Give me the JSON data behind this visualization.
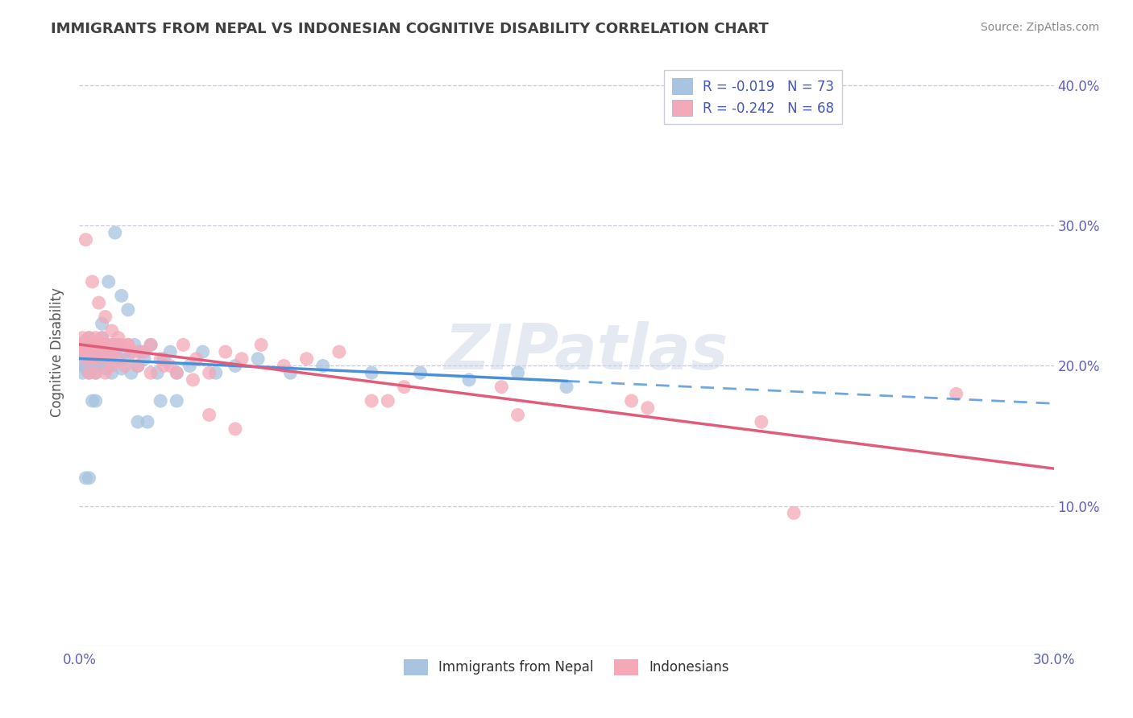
{
  "title": "IMMIGRANTS FROM NEPAL VS INDONESIAN COGNITIVE DISABILITY CORRELATION CHART",
  "source": "Source: ZipAtlas.com",
  "ylabel": "Cognitive Disability",
  "xlim": [
    0.0,
    0.3
  ],
  "ylim": [
    0.0,
    0.42
  ],
  "r1": -0.019,
  "n1": 73,
  "r2": -0.242,
  "n2": 68,
  "color1": "#a8c4e0",
  "color2": "#f4a8b8",
  "line1_color": "#4a90d9",
  "line2_color": "#e05c7a",
  "legend_label1": "Immigrants from Nepal",
  "legend_label2": "Indonesians",
  "background_color": "#ffffff",
  "grid_color": "#c8c8d8",
  "title_color": "#404040",
  "source_color": "#888888",
  "watermark": "ZIPatlas",
  "nepal_x": [
    0.001,
    0.001,
    0.001,
    0.002,
    0.002,
    0.002,
    0.002,
    0.003,
    0.003,
    0.003,
    0.003,
    0.003,
    0.004,
    0.004,
    0.004,
    0.004,
    0.005,
    0.005,
    0.005,
    0.005,
    0.006,
    0.006,
    0.006,
    0.007,
    0.007,
    0.008,
    0.008,
    0.008,
    0.009,
    0.009,
    0.01,
    0.01,
    0.011,
    0.012,
    0.012,
    0.013,
    0.014,
    0.015,
    0.016,
    0.017,
    0.018,
    0.019,
    0.02,
    0.022,
    0.024,
    0.026,
    0.028,
    0.03,
    0.034,
    0.038,
    0.042,
    0.048,
    0.055,
    0.065,
    0.075,
    0.09,
    0.105,
    0.12,
    0.135,
    0.15,
    0.002,
    0.003,
    0.004,
    0.005,
    0.007,
    0.009,
    0.011,
    0.013,
    0.015,
    0.018,
    0.021,
    0.025,
    0.03
  ],
  "nepal_y": [
    0.205,
    0.195,
    0.215,
    0.21,
    0.198,
    0.218,
    0.2,
    0.21,
    0.215,
    0.195,
    0.205,
    0.22,
    0.21,
    0.198,
    0.215,
    0.205,
    0.2,
    0.215,
    0.21,
    0.195,
    0.205,
    0.215,
    0.2,
    0.21,
    0.22,
    0.198,
    0.215,
    0.205,
    0.21,
    0.2,
    0.215,
    0.195,
    0.21,
    0.205,
    0.215,
    0.198,
    0.21,
    0.205,
    0.195,
    0.215,
    0.2,
    0.21,
    0.205,
    0.215,
    0.195,
    0.205,
    0.21,
    0.195,
    0.2,
    0.21,
    0.195,
    0.2,
    0.205,
    0.195,
    0.2,
    0.195,
    0.195,
    0.19,
    0.195,
    0.185,
    0.12,
    0.12,
    0.175,
    0.175,
    0.23,
    0.26,
    0.295,
    0.25,
    0.24,
    0.16,
    0.16,
    0.175,
    0.175
  ],
  "indo_x": [
    0.001,
    0.001,
    0.001,
    0.002,
    0.002,
    0.002,
    0.003,
    0.003,
    0.003,
    0.004,
    0.004,
    0.004,
    0.005,
    0.005,
    0.006,
    0.006,
    0.007,
    0.007,
    0.008,
    0.008,
    0.009,
    0.009,
    0.01,
    0.01,
    0.011,
    0.012,
    0.013,
    0.014,
    0.015,
    0.016,
    0.018,
    0.02,
    0.022,
    0.025,
    0.028,
    0.032,
    0.036,
    0.04,
    0.045,
    0.05,
    0.056,
    0.063,
    0.07,
    0.08,
    0.09,
    0.1,
    0.002,
    0.004,
    0.006,
    0.008,
    0.01,
    0.012,
    0.015,
    0.018,
    0.022,
    0.026,
    0.03,
    0.035,
    0.04,
    0.048,
    0.13,
    0.17,
    0.22,
    0.27,
    0.095,
    0.135,
    0.175,
    0.21
  ],
  "indo_y": [
    0.21,
    0.215,
    0.22,
    0.205,
    0.215,
    0.21,
    0.22,
    0.195,
    0.215,
    0.205,
    0.215,
    0.21,
    0.22,
    0.195,
    0.215,
    0.205,
    0.21,
    0.22,
    0.195,
    0.215,
    0.205,
    0.215,
    0.2,
    0.21,
    0.215,
    0.205,
    0.215,
    0.2,
    0.215,
    0.21,
    0.2,
    0.21,
    0.215,
    0.205,
    0.2,
    0.215,
    0.205,
    0.195,
    0.21,
    0.205,
    0.215,
    0.2,
    0.205,
    0.21,
    0.175,
    0.185,
    0.29,
    0.26,
    0.245,
    0.235,
    0.225,
    0.22,
    0.215,
    0.21,
    0.195,
    0.2,
    0.195,
    0.19,
    0.165,
    0.155,
    0.185,
    0.175,
    0.095,
    0.18,
    0.175,
    0.165,
    0.17,
    0.16
  ]
}
